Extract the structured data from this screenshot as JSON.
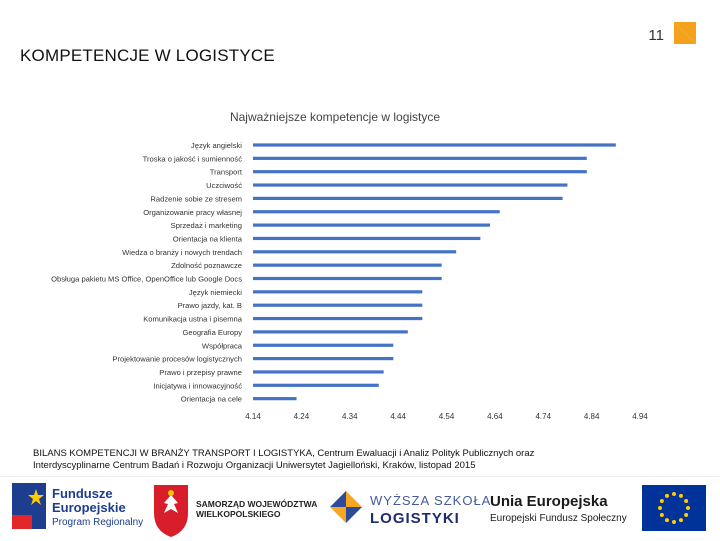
{
  "slide": {
    "page_number": "11",
    "title": "KOMPETENCJE W LOGISTYCE",
    "source_line1": "BILANS KOMPETENCJI W BRANŻY TRANSPORT I LOGISTYKA, Centrum Ewaluacji i Analiz Polityk Publicznych oraz",
    "source_line2": "Interdyscyplinarne Centrum Badań i Rozwoju Organizacji Uniwersytet Jagielloński, Kraków, listopad 2015"
  },
  "logos": {
    "fe_line1": "Fundusze",
    "fe_line2": "Europejskie",
    "fe_line3": "Program Regionalny",
    "samorzad_line1": "SAMORZĄD WOJEWÓDZTWA",
    "samorzad_line2": "WIELKOPOLSKIEGO",
    "wsl_line1": "WYŻSZA SZKOŁA",
    "wsl_line2": "LOGISTYKI",
    "ue_line1": "Unia Europejska",
    "ue_line2": "Europejski Fundusz Społeczny"
  },
  "colors": {
    "bar": "#4472c4",
    "accent": "#f4a21b",
    "eu_blue": "#003399",
    "eu_star": "#ffcc00"
  },
  "chart_data": {
    "type": "bar",
    "orientation": "horizontal",
    "title": "Najważniejsze kompetencje w logistyce",
    "xlabel": "",
    "ylabel": "",
    "xlim": [
      4.14,
      4.94
    ],
    "x_ticks": [
      "4.14",
      "4.24",
      "4.34",
      "4.44",
      "4.54",
      "4.64",
      "4.74",
      "4.84",
      "4.94"
    ],
    "grid": false,
    "legend": "none",
    "categories": [
      "Język angielski",
      "Troska o jakość i sumienność",
      "Transport",
      "Uczciwość",
      "Radzenie sobie ze stresem",
      "Organizowanie pracy własnej",
      "Sprzedaż i marketing",
      "Orientacja na klienta",
      "Wiedza o branży i nowych trendach",
      "Zdolność poznawcze",
      "Obsługa pakietu MS Office, OpenOffice lub Google Docs",
      "Język niemiecki",
      "Prawo jazdy, kat. B",
      "Komunikacja ustna i pisemna",
      "Geografia Europy",
      "Współpraca",
      "Projektowanie procesów logistycznych",
      "Prawo i przepisy prawne",
      "Inicjatywa i innowacyjność",
      "Orientacja na cele"
    ],
    "values": [
      4.89,
      4.83,
      4.83,
      4.79,
      4.78,
      4.65,
      4.63,
      4.61,
      4.56,
      4.53,
      4.53,
      4.49,
      4.49,
      4.49,
      4.46,
      4.43,
      4.43,
      4.41,
      4.4,
      4.23
    ]
  }
}
